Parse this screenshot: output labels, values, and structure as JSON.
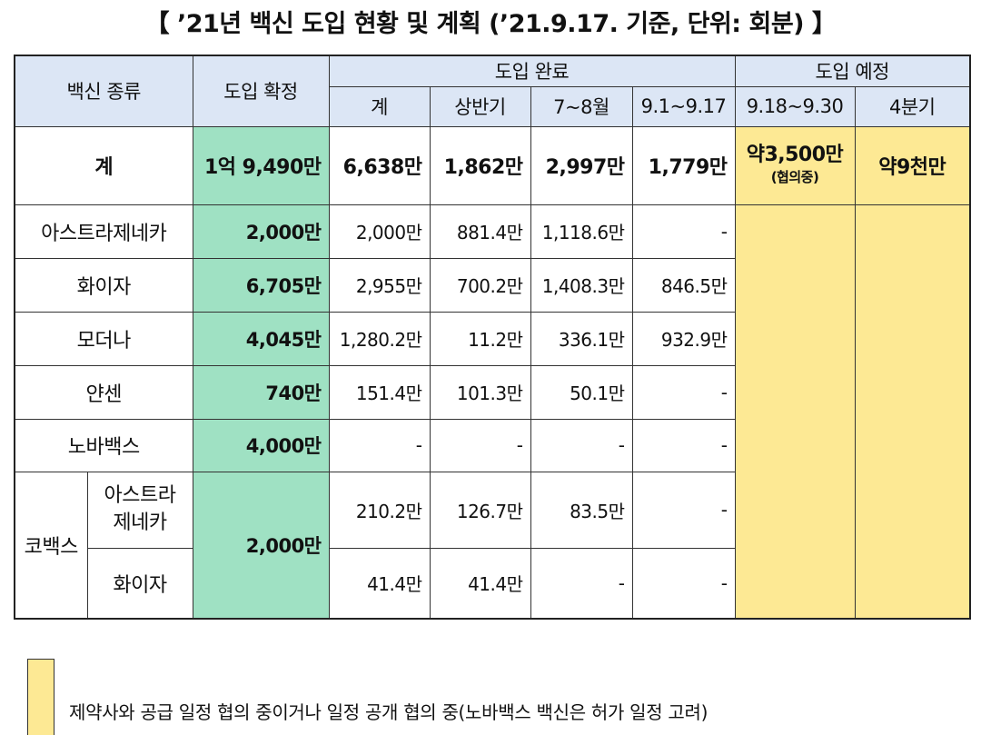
{
  "title": "【 ’21년 백신 도입 현황 및 계획 (’21.9.17. 기준, 단위: 회분) 】",
  "header": {
    "vaccine_type": "백신 종류",
    "confirmed": "도입 확정",
    "completed": "도입 완료",
    "scheduled": "도입 예정",
    "sub": {
      "total": "계",
      "h1": "상반기",
      "jul_aug": "7~8월",
      "sep1_17": "9.1~9.17",
      "sep18_30": "9.18~9.30",
      "q4": "4분기"
    }
  },
  "total_row": {
    "label": "계",
    "confirmed": "1억 9,490만",
    "total": "6,638만",
    "h1": "1,862만",
    "jul_aug": "2,997만",
    "sep1_17": "1,779만",
    "sep18_30": "약3,500만",
    "sep18_30_note": "(협의중)",
    "q4": "약9천만"
  },
  "rows": [
    {
      "label": "아스트라제네카",
      "confirmed": "2,000만",
      "total": "2,000만",
      "h1": "881.4만",
      "jul_aug": "1,118.6만",
      "sep1_17": "-"
    },
    {
      "label": "화이자",
      "confirmed": "6,705만",
      "total": "2,955만",
      "h1": "700.2만",
      "jul_aug": "1,408.3만",
      "sep1_17": "846.5만"
    },
    {
      "label": "모더나",
      "confirmed": "4,045만",
      "total": "1,280.2만",
      "h1": "11.2만",
      "jul_aug": "336.1만",
      "sep1_17": "932.9만"
    },
    {
      "label": "얀센",
      "confirmed": "740만",
      "total": "151.4만",
      "h1": "101.3만",
      "jul_aug": "50.1만",
      "sep1_17": "-"
    },
    {
      "label": "노바백스",
      "confirmed": "4,000만",
      "total": "-",
      "h1": "-",
      "jul_aug": "-",
      "sep1_17": "-"
    }
  ],
  "covax": {
    "label": "코백스",
    "confirmed": "2,000만",
    "rows": [
      {
        "label": "아스트라\n제네카",
        "total": "210.2만",
        "h1": "126.7만",
        "jul_aug": "83.5만",
        "sep1_17": "-"
      },
      {
        "label": "화이자",
        "total": "41.4만",
        "h1": "41.4만",
        "jul_aug": "-",
        "sep1_17": "-"
      }
    ]
  },
  "legend": {
    "color": "#fde994",
    "text": "제약사와 공급 일정 협의 중이거나 일정 공개 협의 중(노바백스 백신은 허가 일정 고려)"
  },
  "colors": {
    "header_bg": "#dce6f5",
    "confirmed_bg": "#9fe1c3",
    "scheduled_bg": "#fde994"
  }
}
